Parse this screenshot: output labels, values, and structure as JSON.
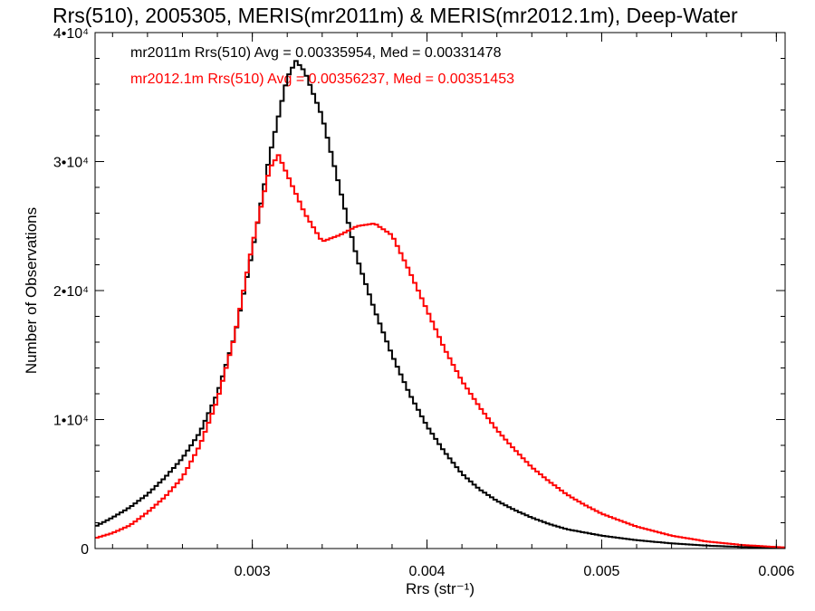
{
  "chart_data": {
    "type": "line",
    "title": "Rrs(510), 2005305, MERIS(mr2011m) & MERIS(mr2012.1m), Deep-Water",
    "xlabel": "Rrs (str⁻¹)",
    "ylabel": "Number of Observations",
    "xlim": [
      0.0021,
      0.00605
    ],
    "ylim": [
      0,
      40000
    ],
    "x_ticks": [
      {
        "value": 0.003,
        "label": "0.003"
      },
      {
        "value": 0.004,
        "label": "0.004"
      },
      {
        "value": 0.005,
        "label": "0.005"
      },
      {
        "value": 0.006,
        "label": "0.006"
      }
    ],
    "y_ticks": [
      {
        "value": 0,
        "label": "0"
      },
      {
        "value": 10000,
        "label": "1•10⁴"
      },
      {
        "value": 20000,
        "label": "2•10⁴"
      },
      {
        "value": 30000,
        "label": "3•10⁴"
      },
      {
        "value": 40000,
        "label": "4•10⁴"
      }
    ],
    "grid": false,
    "legend": "top-left",
    "annotations": [
      {
        "text": "mr2011m Rrs(510) Avg = 0.00335954, Med = 0.00331478",
        "color": "#000000"
      },
      {
        "text": "mr2012.1m Rrs(510) Avg = 0.00356237, Med = 0.00351453",
        "color": "#ff0000"
      }
    ],
    "series": [
      {
        "color": "#000000",
        "x": [
          0.0021,
          0.0022,
          0.0023,
          0.0024,
          0.0025,
          0.0026,
          0.0027,
          0.0028,
          0.0029,
          0.003,
          0.0031,
          0.00315,
          0.0032,
          0.00325,
          0.0033,
          0.0034,
          0.0035,
          0.0036,
          0.0037,
          0.0038,
          0.0039,
          0.004,
          0.0041,
          0.0042,
          0.0043,
          0.0044,
          0.0045,
          0.0046,
          0.0047,
          0.0048,
          0.005,
          0.0052,
          0.0054,
          0.0056,
          0.0058,
          0.00605
        ],
        "y": [
          1700,
          2400,
          3200,
          4200,
          5500,
          7000,
          9000,
          12000,
          16500,
          23000,
          30500,
          33500,
          36500,
          37800,
          37000,
          33500,
          28000,
          22500,
          18500,
          15000,
          12000,
          9500,
          7500,
          5800,
          4600,
          3700,
          3000,
          2400,
          1900,
          1500,
          1000,
          650,
          400,
          230,
          120,
          50
        ]
      },
      {
        "color": "#ff0000",
        "x": [
          0.0021,
          0.0022,
          0.0023,
          0.0024,
          0.0025,
          0.0026,
          0.0027,
          0.0028,
          0.0029,
          0.003,
          0.0031,
          0.00315,
          0.0032,
          0.0033,
          0.0034,
          0.0035,
          0.0036,
          0.0037,
          0.0038,
          0.0039,
          0.004,
          0.0041,
          0.0042,
          0.0043,
          0.0044,
          0.0045,
          0.0046,
          0.0047,
          0.0048,
          0.0049,
          0.005,
          0.0052,
          0.0054,
          0.0056,
          0.0058,
          0.00605
        ],
        "y": [
          800,
          1200,
          1800,
          2800,
          4000,
          5500,
          8000,
          11500,
          16500,
          23500,
          29500,
          30500,
          29000,
          26000,
          23800,
          24300,
          25000,
          25200,
          24300,
          21500,
          18500,
          15500,
          13000,
          11000,
          9200,
          7700,
          6300,
          5200,
          4200,
          3400,
          2700,
          1700,
          1000,
          550,
          280,
          80
        ]
      }
    ]
  }
}
